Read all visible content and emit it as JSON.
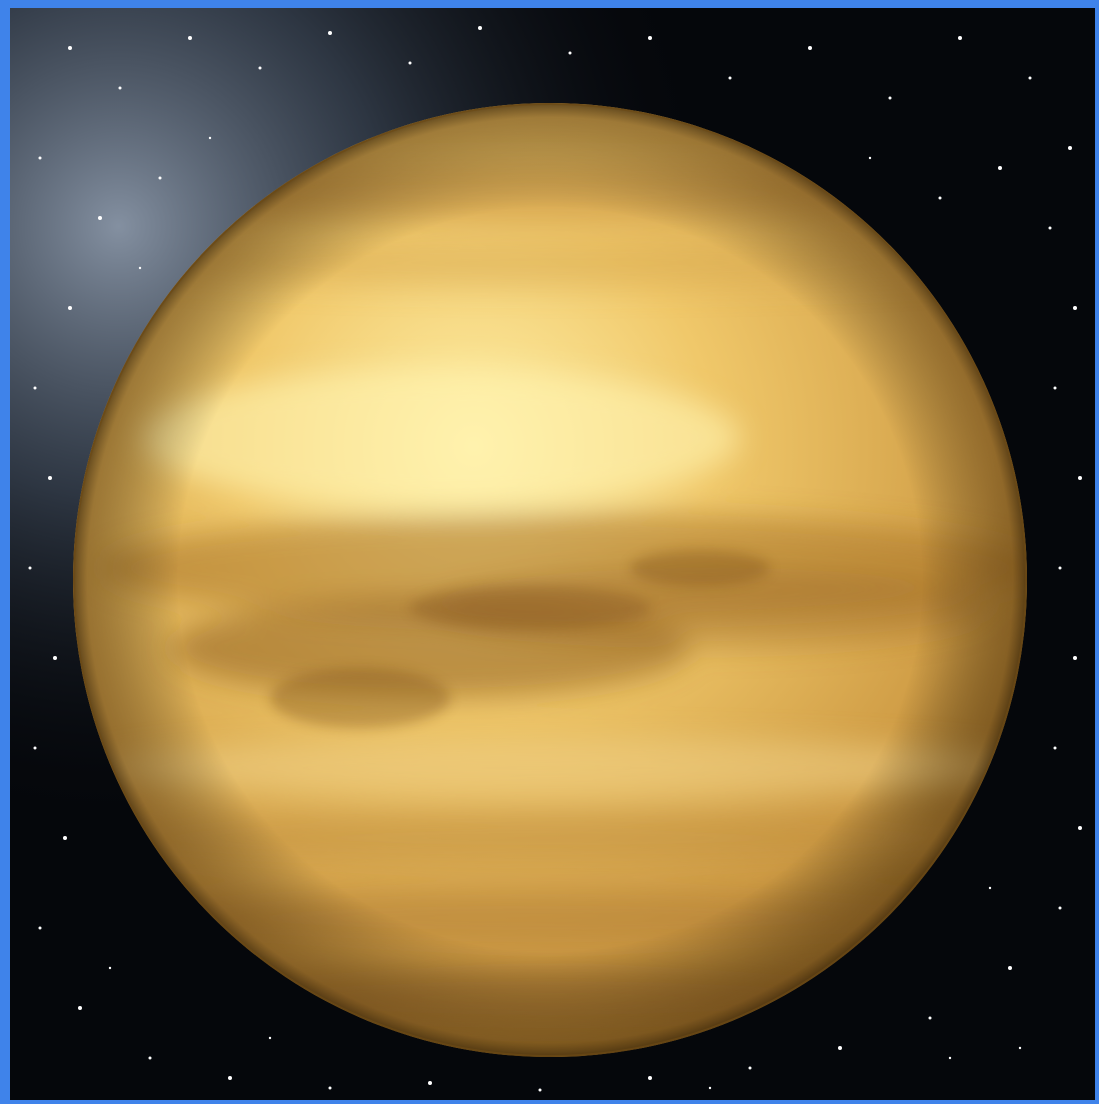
{
  "image": {
    "subject": "planet-icon",
    "colors": {
      "frame": "#3f83ea",
      "space": "#05070b",
      "nebula": "#8a99ad",
      "planet_light": "#ffe58a",
      "planet_mid": "#e2b457",
      "planet_dark": "#8f5e22",
      "planet_edge": "#5b3f14",
      "star": "#ffffff"
    }
  }
}
